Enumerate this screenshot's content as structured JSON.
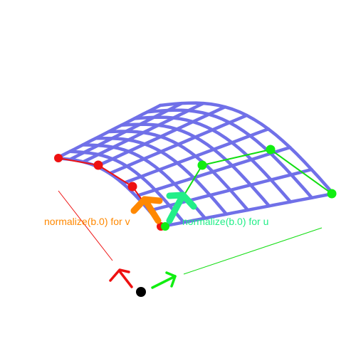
{
  "labels": {
    "v_label": "normalize(b.0) for v",
    "u_label": "normalize(b.0) for u"
  },
  "colors": {
    "surface": "#7070e8",
    "v_curve": "#ee1111",
    "u_curve": "#11dd11",
    "v_tangent": "#ff8800",
    "u_tangent": "#22ee88",
    "origin": "#000000"
  },
  "icons": {
    "v_axis": "arrow-icon",
    "u_axis": "arrow-icon",
    "origin": "dot-icon"
  }
}
